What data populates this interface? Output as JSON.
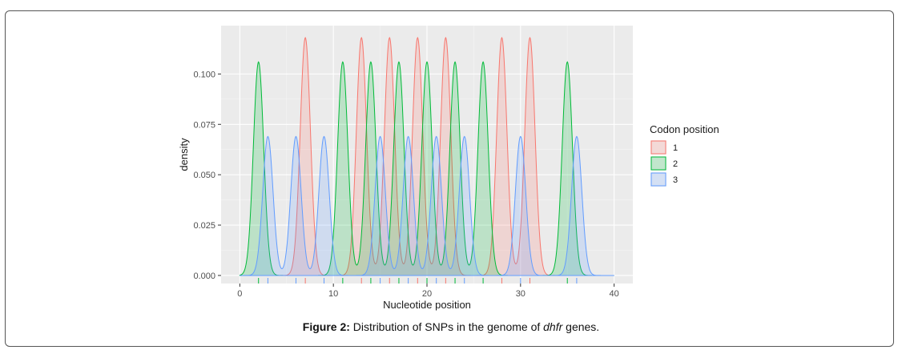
{
  "figure": {
    "caption_label": "Figure 2:",
    "caption_pre": " Distribution of SNPs in the genome of ",
    "caption_italic": "dhfr",
    "caption_post": " genes."
  },
  "chart_data": {
    "type": "area",
    "xlabel": "Nucleotide position",
    "ylabel": "density",
    "xlim": [
      -2,
      42
    ],
    "ylim": [
      -0.004,
      0.124
    ],
    "x_ticks": [
      0,
      10,
      20,
      30,
      40
    ],
    "y_ticks": [
      0.0,
      0.025,
      0.05,
      0.075,
      0.1
    ],
    "y_tick_labels": [
      "0.000",
      "0.025",
      "0.050",
      "0.075",
      "0.100"
    ],
    "grid": true,
    "legend": {
      "title": "Codon position",
      "placement": "right"
    },
    "series": [
      {
        "name": "1",
        "color": "#F8766D",
        "peak_density": 0.118,
        "positions": [
          7,
          13,
          16,
          19,
          22,
          28,
          31
        ]
      },
      {
        "name": "2",
        "color": "#00BA38",
        "peak_density": 0.106,
        "positions": [
          2,
          11,
          14,
          17,
          20,
          23,
          26,
          35
        ]
      },
      {
        "name": "3",
        "color": "#619CFF",
        "peak_density": 0.069,
        "positions": [
          3,
          6,
          9,
          15,
          18,
          21,
          24,
          30,
          36
        ]
      }
    ]
  }
}
